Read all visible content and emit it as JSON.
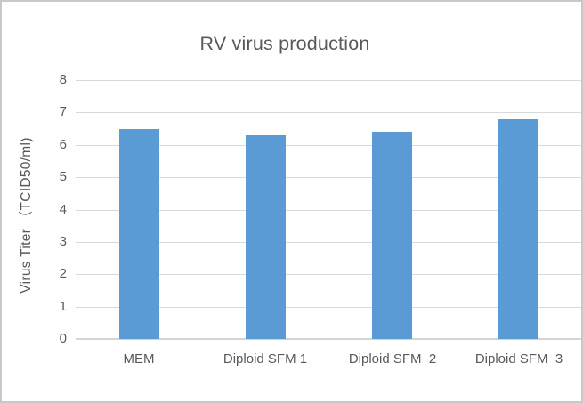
{
  "frame": {
    "background_color": "#ffffff",
    "border_color": "#c8c8c8"
  },
  "chart_data": {
    "type": "bar",
    "title": "RV virus production",
    "categories": [
      "MEM",
      "Diploid SFM 1",
      "Diploid SFM  2",
      "Diploid SFM  3"
    ],
    "values": [
      6.5,
      6.3,
      6.4,
      6.8
    ],
    "xlabel": "",
    "ylabel": "Virus Titer （TCID50/ml)",
    "ylim": [
      0,
      8
    ],
    "yticks": [
      0,
      1,
      2,
      3,
      4,
      5,
      6,
      7,
      8
    ],
    "grid": true,
    "legend_position": "none",
    "bar_color": "#5B9BD5",
    "text_color": "#595959",
    "gridline_color": "#D9D9D9",
    "axis_line_color": "#D4D4D4"
  }
}
